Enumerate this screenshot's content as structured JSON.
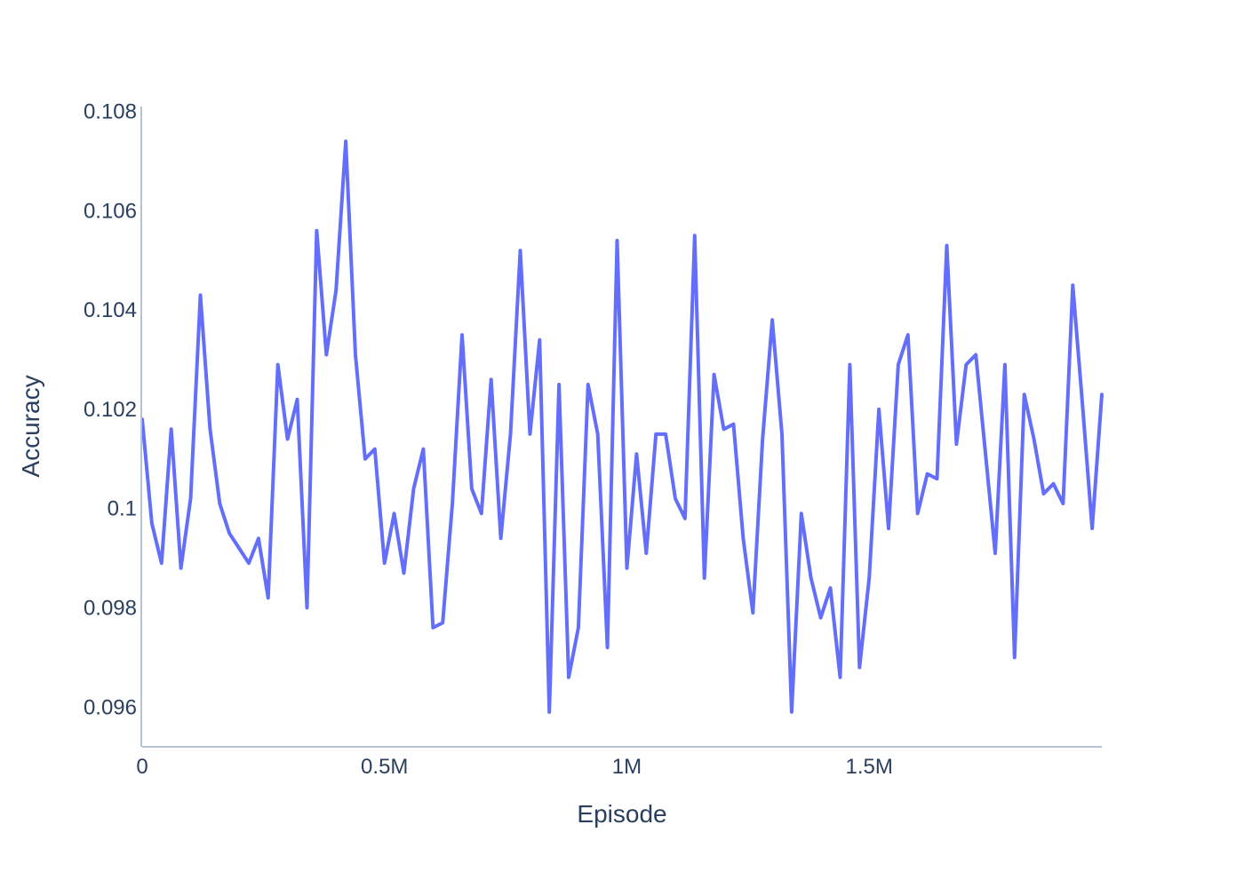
{
  "chart_data": {
    "type": "line",
    "title": "",
    "xlabel": "Episode",
    "ylabel": "Accuracy",
    "xlim": [
      0,
      1980000
    ],
    "ylim": [
      0.0952,
      0.1081
    ],
    "x_ticks": [
      {
        "value": 0,
        "label": "0"
      },
      {
        "value": 500000,
        "label": "0.5M"
      },
      {
        "value": 1000000,
        "label": "1M"
      },
      {
        "value": 1500000,
        "label": "1.5M"
      }
    ],
    "y_ticks": [
      {
        "value": 0.096,
        "label": "0.096"
      },
      {
        "value": 0.098,
        "label": "0.098"
      },
      {
        "value": 0.1,
        "label": "0.1"
      },
      {
        "value": 0.102,
        "label": "0.102"
      },
      {
        "value": 0.104,
        "label": "0.104"
      },
      {
        "value": 0.106,
        "label": "0.106"
      },
      {
        "value": 0.108,
        "label": "0.108"
      }
    ],
    "grid": false,
    "legend": "none",
    "series": [
      {
        "color": "#636efa",
        "x": [
          0,
          20000,
          40000,
          60000,
          80000,
          100000,
          120000,
          140000,
          160000,
          180000,
          200000,
          220000,
          240000,
          260000,
          280000,
          300000,
          320000,
          340000,
          360000,
          380000,
          400000,
          420000,
          440000,
          460000,
          480000,
          500000,
          520000,
          540000,
          560000,
          580000,
          600000,
          620000,
          640000,
          660000,
          680000,
          700000,
          720000,
          740000,
          760000,
          780000,
          800000,
          820000,
          840000,
          860000,
          880000,
          900000,
          920000,
          940000,
          960000,
          980000,
          1000000,
          1020000,
          1040000,
          1060000,
          1080000,
          1100000,
          1120000,
          1140000,
          1160000,
          1180000,
          1200000,
          1220000,
          1240000,
          1260000,
          1280000,
          1300000,
          1320000,
          1340000,
          1360000,
          1380000,
          1400000,
          1420000,
          1440000,
          1460000,
          1480000,
          1500000,
          1520000,
          1540000,
          1560000,
          1580000,
          1600000,
          1620000,
          1640000,
          1660000,
          1680000,
          1700000,
          1720000,
          1740000,
          1760000,
          1780000,
          1800000,
          1820000,
          1840000,
          1860000,
          1880000,
          1900000,
          1920000,
          1940000,
          1960000,
          1980000
        ],
        "y": [
          0.1018,
          0.0997,
          0.0989,
          0.1016,
          0.0988,
          0.1002,
          0.1043,
          0.1016,
          0.1001,
          0.0995,
          0.0992,
          0.0989,
          0.0994,
          0.0982,
          0.1029,
          0.1014,
          0.1022,
          0.098,
          0.1056,
          0.1031,
          0.1044,
          0.1074,
          0.1031,
          0.101,
          0.1012,
          0.0989,
          0.0999,
          0.0987,
          0.1004,
          0.1012,
          0.0976,
          0.0977,
          0.1001,
          0.1035,
          0.1004,
          0.0999,
          0.1026,
          0.0994,
          0.1015,
          0.1052,
          0.1015,
          0.1034,
          0.0959,
          0.1025,
          0.0966,
          0.0976,
          0.1025,
          0.1015,
          0.0972,
          0.1054,
          0.0988,
          0.1011,
          0.0991,
          0.1015,
          0.1015,
          0.1002,
          0.0998,
          0.1055,
          0.0986,
          0.1027,
          0.1016,
          0.1017,
          0.0994,
          0.0979,
          0.1014,
          0.1038,
          0.1015,
          0.0959,
          0.0999,
          0.0986,
          0.0978,
          0.0984,
          0.0966,
          0.1029,
          0.0968,
          0.0986,
          0.102,
          0.0996,
          0.1029,
          0.1035,
          0.0999,
          0.1007,
          0.1006,
          0.1053,
          0.1013,
          0.1029,
          0.1031,
          0.1011,
          0.0991,
          0.1029,
          0.097,
          0.1023,
          0.1014,
          0.1003,
          0.1005,
          0.1001,
          0.1045,
          0.1021,
          0.0996,
          0.1023
        ]
      }
    ]
  }
}
